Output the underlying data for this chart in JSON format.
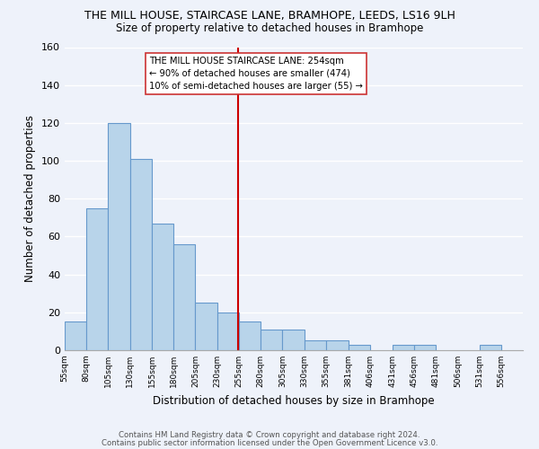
{
  "title": "THE MILL HOUSE, STAIRCASE LANE, BRAMHOPE, LEEDS, LS16 9LH",
  "subtitle": "Size of property relative to detached houses in Bramhope",
  "xlabel": "Distribution of detached houses by size in Bramhope",
  "ylabel": "Number of detached properties",
  "bar_color": "#b8d4ea",
  "bar_edge_color": "#6699cc",
  "background_color": "#eef2fa",
  "grid_color": "#ffffff",
  "bin_labels": [
    "55sqm",
    "80sqm",
    "105sqm",
    "130sqm",
    "155sqm",
    "180sqm",
    "205sqm",
    "230sqm",
    "255sqm",
    "280sqm",
    "305sqm",
    "330sqm",
    "355sqm",
    "381sqm",
    "406sqm",
    "431sqm",
    "456sqm",
    "481sqm",
    "506sqm",
    "531sqm",
    "556sqm"
  ],
  "bar_heights": [
    15,
    75,
    120,
    101,
    67,
    56,
    25,
    20,
    15,
    11,
    11,
    5,
    5,
    3,
    0,
    3,
    3,
    0,
    0,
    3,
    0
  ],
  "bin_edges": [
    55,
    80,
    105,
    130,
    155,
    180,
    205,
    230,
    255,
    280,
    305,
    330,
    355,
    381,
    406,
    431,
    456,
    481,
    506,
    531,
    556,
    581
  ],
  "vline_x": 254,
  "vline_color": "#cc0000",
  "annotation_line1": "THE MILL HOUSE STAIRCASE LANE: 254sqm",
  "annotation_line2": "← 90% of detached houses are smaller (474)",
  "annotation_line3": "10% of semi-detached houses are larger (55) →",
  "ylim": [
    0,
    160
  ],
  "yticks": [
    0,
    20,
    40,
    60,
    80,
    100,
    120,
    140,
    160
  ],
  "footer1": "Contains HM Land Registry data © Crown copyright and database right 2024.",
  "footer2": "Contains public sector information licensed under the Open Government Licence v3.0."
}
